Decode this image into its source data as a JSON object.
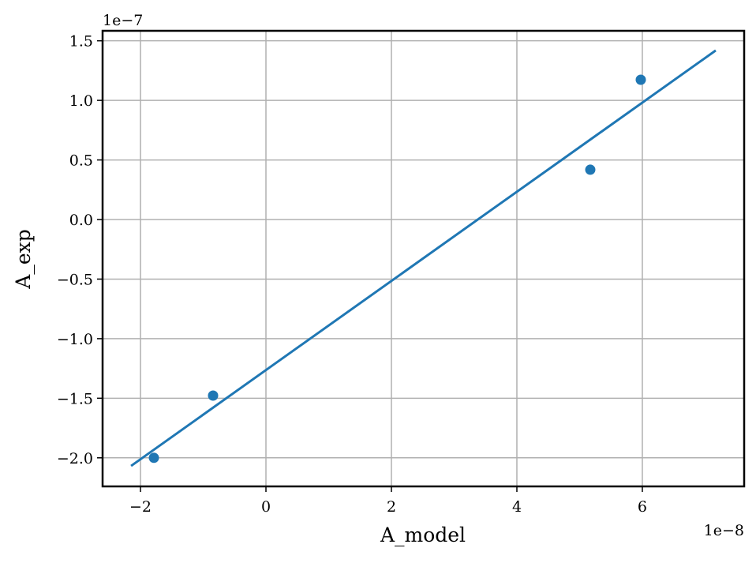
{
  "chart_data": {
    "type": "scatter",
    "x_label": "A_model",
    "y_label": "A_exp",
    "x_offset_text": "1e−8",
    "y_offset_text": "1e−7",
    "xlim": [
      -2.604,
      7.623
    ],
    "ylim": [
      -2.24,
      1.584
    ],
    "xticks": [
      {
        "value": -2,
        "label": "−2"
      },
      0,
      2,
      4,
      6
    ],
    "yticks": [
      {
        "value": -2,
        "label": "−2.0"
      },
      {
        "value": -1.5,
        "label": "−1.5"
      },
      {
        "value": -1,
        "label": "−1.0"
      },
      {
        "value": -0.5,
        "label": "−0.5"
      },
      {
        "value": 0,
        "label": "0.0"
      },
      0.5,
      {
        "value": 1,
        "label": "1.0"
      },
      1.5
    ],
    "grid": true,
    "series": [
      {
        "kind": "points",
        "color": "#1f77b4",
        "x": [
          -1.786,
          -0.843,
          5.17,
          5.975
        ],
        "values": [
          -2.0,
          -1.478,
          0.418,
          1.173
        ]
      },
      {
        "kind": "line",
        "color": "#1f77b4",
        "x": [
          -2.15,
          7.17
        ],
        "values": [
          -2.068,
          1.419
        ]
      }
    ]
  }
}
